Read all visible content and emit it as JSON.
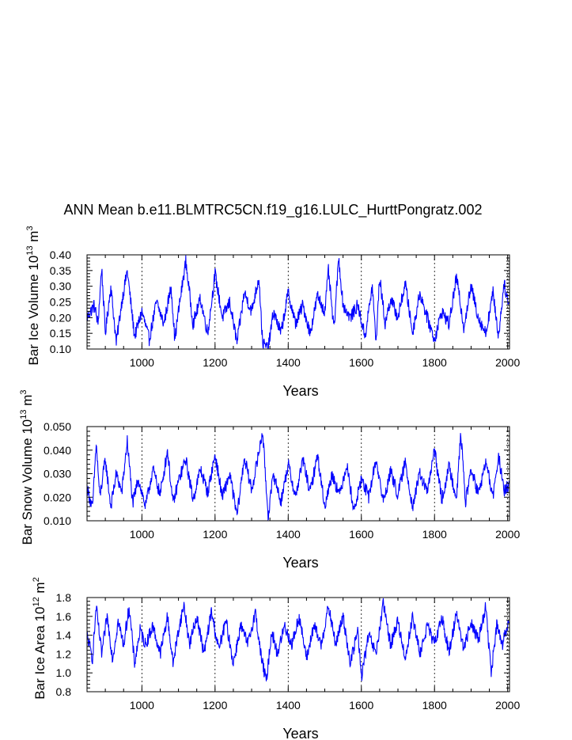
{
  "figure": {
    "title": "ANN Mean b.e11.BLMTRC5CN.f19_g16.LULC_HurttPongratz.002"
  },
  "chart_data": [
    {
      "type": "line",
      "name": "ice-volume",
      "title": "ANN Mean b.e11.BLMTRC5CN.f19_g16.LULC_HurttPongratz.002",
      "xlabel": "Years",
      "ylabel": {
        "prefix": "Bar Ice Volume 10",
        "exp": "13",
        "unit": " m",
        "unit_exp": "3"
      },
      "xlim": [
        850,
        2005
      ],
      "ylim": [
        0.1,
        0.4
      ],
      "xticks": [
        1000,
        1200,
        1400,
        1600,
        1800,
        2000
      ],
      "xtick_labels": [
        "1000",
        "1200",
        "1400",
        "1600",
        "1800",
        "2000"
      ],
      "yticks": [
        0.1,
        0.15,
        0.2,
        0.25,
        0.3,
        0.35,
        0.4
      ],
      "ytick_labels": [
        "0.10",
        "0.15",
        "0.20",
        "0.25",
        "0.30",
        "0.35",
        "0.40"
      ],
      "grid_x": [
        1000,
        1200,
        1400,
        1600,
        1800,
        2000
      ],
      "series_color": "#0000ff",
      "series": [
        {
          "name": "Bar Ice Volume",
          "x": [
            850,
            870,
            880,
            890,
            900,
            915,
            930,
            945,
            960,
            980,
            1000,
            1020,
            1040,
            1060,
            1080,
            1090,
            1100,
            1120,
            1140,
            1160,
            1180,
            1200,
            1220,
            1240,
            1260,
            1280,
            1300,
            1320,
            1330,
            1345,
            1360,
            1380,
            1400,
            1420,
            1440,
            1460,
            1480,
            1500,
            1510,
            1525,
            1538,
            1550,
            1570,
            1590,
            1610,
            1630,
            1640,
            1650,
            1665,
            1680,
            1700,
            1720,
            1740,
            1760,
            1780,
            1800,
            1820,
            1840,
            1860,
            1880,
            1900,
            1920,
            1940,
            1960,
            1975,
            1990,
            2005
          ],
          "y": [
            0.2,
            0.24,
            0.18,
            0.36,
            0.15,
            0.3,
            0.12,
            0.25,
            0.35,
            0.14,
            0.22,
            0.13,
            0.25,
            0.18,
            0.3,
            0.13,
            0.22,
            0.38,
            0.18,
            0.26,
            0.15,
            0.34,
            0.2,
            0.25,
            0.12,
            0.28,
            0.22,
            0.33,
            0.12,
            0.1,
            0.22,
            0.15,
            0.28,
            0.18,
            0.24,
            0.15,
            0.27,
            0.22,
            0.35,
            0.16,
            0.39,
            0.24,
            0.2,
            0.24,
            0.14,
            0.3,
            0.12,
            0.33,
            0.18,
            0.26,
            0.2,
            0.31,
            0.15,
            0.28,
            0.2,
            0.13,
            0.22,
            0.18,
            0.33,
            0.17,
            0.3,
            0.2,
            0.15,
            0.28,
            0.14,
            0.31,
            0.23
          ]
        }
      ]
    },
    {
      "type": "line",
      "name": "snow-volume",
      "xlabel": "Years",
      "ylabel": {
        "prefix": "Bar Snow Volume 10",
        "exp": "13",
        "unit": " m",
        "unit_exp": "3"
      },
      "xlim": [
        850,
        2005
      ],
      "ylim": [
        0.01,
        0.05
      ],
      "xticks": [
        1000,
        1200,
        1400,
        1600,
        1800,
        2000
      ],
      "xtick_labels": [
        "1000",
        "1200",
        "1400",
        "1600",
        "1800",
        "2000"
      ],
      "yticks": [
        0.01,
        0.02,
        0.03,
        0.04,
        0.05
      ],
      "ytick_labels": [
        "0.010",
        "0.020",
        "0.030",
        "0.040",
        "0.050"
      ],
      "grid_x": [
        1000,
        1200,
        1400,
        1600,
        1800,
        2000
      ],
      "series_color": "#0000ff",
      "series": [
        {
          "name": "Bar Snow Volume",
          "x": [
            850,
            865,
            875,
            885,
            900,
            915,
            930,
            945,
            960,
            975,
            990,
            1010,
            1030,
            1050,
            1070,
            1085,
            1100,
            1120,
            1140,
            1160,
            1180,
            1200,
            1220,
            1240,
            1260,
            1280,
            1300,
            1315,
            1330,
            1345,
            1360,
            1380,
            1400,
            1420,
            1440,
            1460,
            1480,
            1500,
            1520,
            1540,
            1560,
            1580,
            1600,
            1620,
            1640,
            1660,
            1680,
            1700,
            1720,
            1740,
            1760,
            1780,
            1800,
            1820,
            1840,
            1860,
            1872,
            1885,
            1900,
            1920,
            1940,
            1960,
            1975,
            1990,
            2005
          ],
          "y": [
            0.024,
            0.015,
            0.043,
            0.02,
            0.036,
            0.016,
            0.03,
            0.022,
            0.044,
            0.017,
            0.028,
            0.016,
            0.032,
            0.021,
            0.04,
            0.017,
            0.027,
            0.036,
            0.019,
            0.032,
            0.022,
            0.038,
            0.02,
            0.03,
            0.012,
            0.037,
            0.023,
            0.035,
            0.048,
            0.012,
            0.03,
            0.018,
            0.034,
            0.02,
            0.036,
            0.022,
            0.038,
            0.016,
            0.03,
            0.021,
            0.034,
            0.014,
            0.028,
            0.02,
            0.036,
            0.018,
            0.031,
            0.021,
            0.035,
            0.016,
            0.03,
            0.022,
            0.04,
            0.019,
            0.033,
            0.02,
            0.047,
            0.018,
            0.032,
            0.021,
            0.035,
            0.02,
            0.038,
            0.022,
            0.026
          ]
        }
      ]
    },
    {
      "type": "line",
      "name": "ice-area",
      "xlabel": "Years",
      "ylabel": {
        "prefix": "Bar Ice Area 10",
        "exp": "12",
        "unit": " m",
        "unit_exp": "2"
      },
      "xlim": [
        850,
        2005
      ],
      "ylim": [
        0.8,
        1.8
      ],
      "xticks": [
        1000,
        1200,
        1400,
        1600,
        1800,
        2000
      ],
      "xtick_labels": [
        "1000",
        "1200",
        "1400",
        "1600",
        "1800",
        "2000"
      ],
      "yticks": [
        0.8,
        1.0,
        1.2,
        1.4,
        1.6,
        1.8
      ],
      "ytick_labels": [
        "0.8",
        "1.0",
        "1.2",
        "1.4",
        "1.6",
        "1.8"
      ],
      "grid_x": [
        1000,
        1200,
        1400,
        1600,
        1800,
        2000
      ],
      "series_color": "#0000ff",
      "series": [
        {
          "name": "Bar Ice Area",
          "x": [
            850,
            865,
            875,
            890,
            905,
            920,
            935,
            950,
            965,
            980,
            995,
            1010,
            1030,
            1050,
            1070,
            1085,
            1100,
            1115,
            1130,
            1150,
            1170,
            1190,
            1210,
            1230,
            1250,
            1270,
            1290,
            1310,
            1325,
            1340,
            1355,
            1370,
            1390,
            1410,
            1430,
            1450,
            1470,
            1490,
            1510,
            1530,
            1550,
            1570,
            1590,
            1600,
            1620,
            1640,
            1660,
            1680,
            1700,
            1720,
            1740,
            1760,
            1780,
            1800,
            1820,
            1840,
            1860,
            1880,
            1900,
            1920,
            1940,
            1955,
            1970,
            1985,
            2005
          ],
          "y": [
            1.4,
            1.15,
            1.7,
            1.2,
            1.6,
            1.15,
            1.55,
            1.3,
            1.7,
            1.1,
            1.45,
            1.3,
            1.5,
            1.2,
            1.6,
            1.1,
            1.45,
            1.72,
            1.3,
            1.6,
            1.2,
            1.65,
            1.25,
            1.55,
            1.1,
            1.5,
            1.3,
            1.65,
            1.2,
            0.9,
            1.45,
            1.2,
            1.5,
            1.3,
            1.6,
            1.15,
            1.5,
            1.3,
            1.7,
            1.3,
            1.6,
            1.1,
            1.45,
            0.96,
            1.4,
            1.2,
            1.73,
            1.3,
            1.55,
            1.15,
            1.6,
            1.2,
            1.5,
            1.3,
            1.6,
            1.2,
            1.65,
            1.25,
            1.55,
            1.35,
            1.7,
            1.0,
            1.5,
            1.3,
            1.55
          ]
        }
      ]
    }
  ]
}
